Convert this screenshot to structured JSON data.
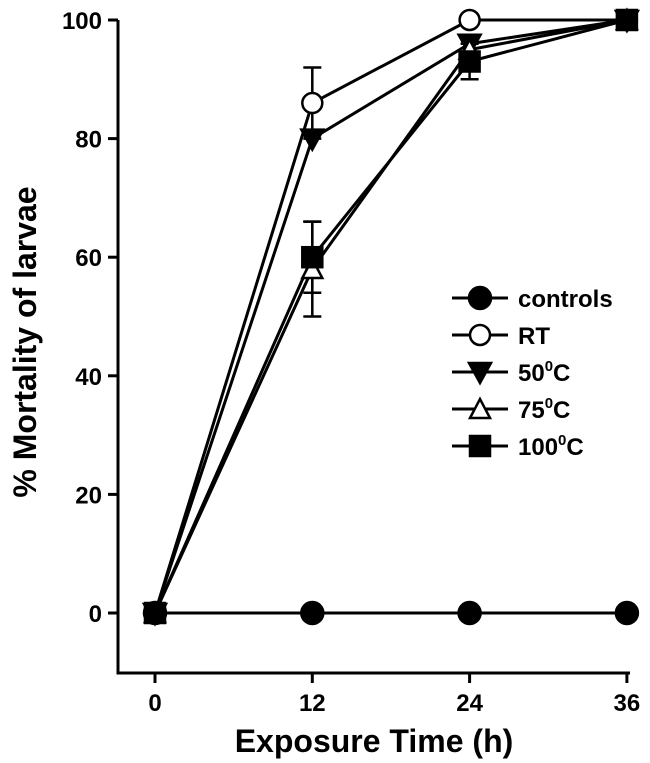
{
  "chart_data": {
    "type": "line",
    "xlabel": "Exposure Time (h)",
    "ylabel": "% Mortality of larvae",
    "xlim": [
      -4,
      36
    ],
    "ylim": [
      -10,
      100
    ],
    "x_ticks": [
      "0",
      "12",
      "24",
      "36"
    ],
    "y_ticks": [
      "0",
      "20",
      "40",
      "60",
      "80",
      "100"
    ],
    "x": [
      0,
      12,
      24,
      36
    ],
    "legend_position": "right",
    "series": [
      {
        "name": "controls",
        "degree": "",
        "name_suffix": "",
        "marker": "filled-circle",
        "values": [
          0,
          0,
          0,
          0
        ],
        "errors": [
          0,
          0,
          0,
          0
        ]
      },
      {
        "name": "RT",
        "degree": "",
        "name_suffix": "",
        "marker": "open-circle",
        "values": [
          0,
          86,
          100,
          100
        ],
        "errors": [
          0,
          6,
          0,
          0
        ]
      },
      {
        "name": "50",
        "degree": "0",
        "name_suffix": "C",
        "marker": "filled-triangle-down",
        "values": [
          0,
          80,
          96,
          100
        ],
        "errors": [
          0,
          0,
          0,
          0
        ]
      },
      {
        "name": "75",
        "degree": "0",
        "name_suffix": "C",
        "marker": "open-triangle-up",
        "values": [
          0,
          58,
          95,
          100
        ],
        "errors": [
          0,
          8,
          0,
          0
        ]
      },
      {
        "name": "100",
        "degree": "0",
        "name_suffix": "C",
        "marker": "filled-square",
        "values": [
          0,
          60,
          93,
          100
        ],
        "errors": [
          0,
          6,
          3,
          0
        ]
      }
    ]
  }
}
